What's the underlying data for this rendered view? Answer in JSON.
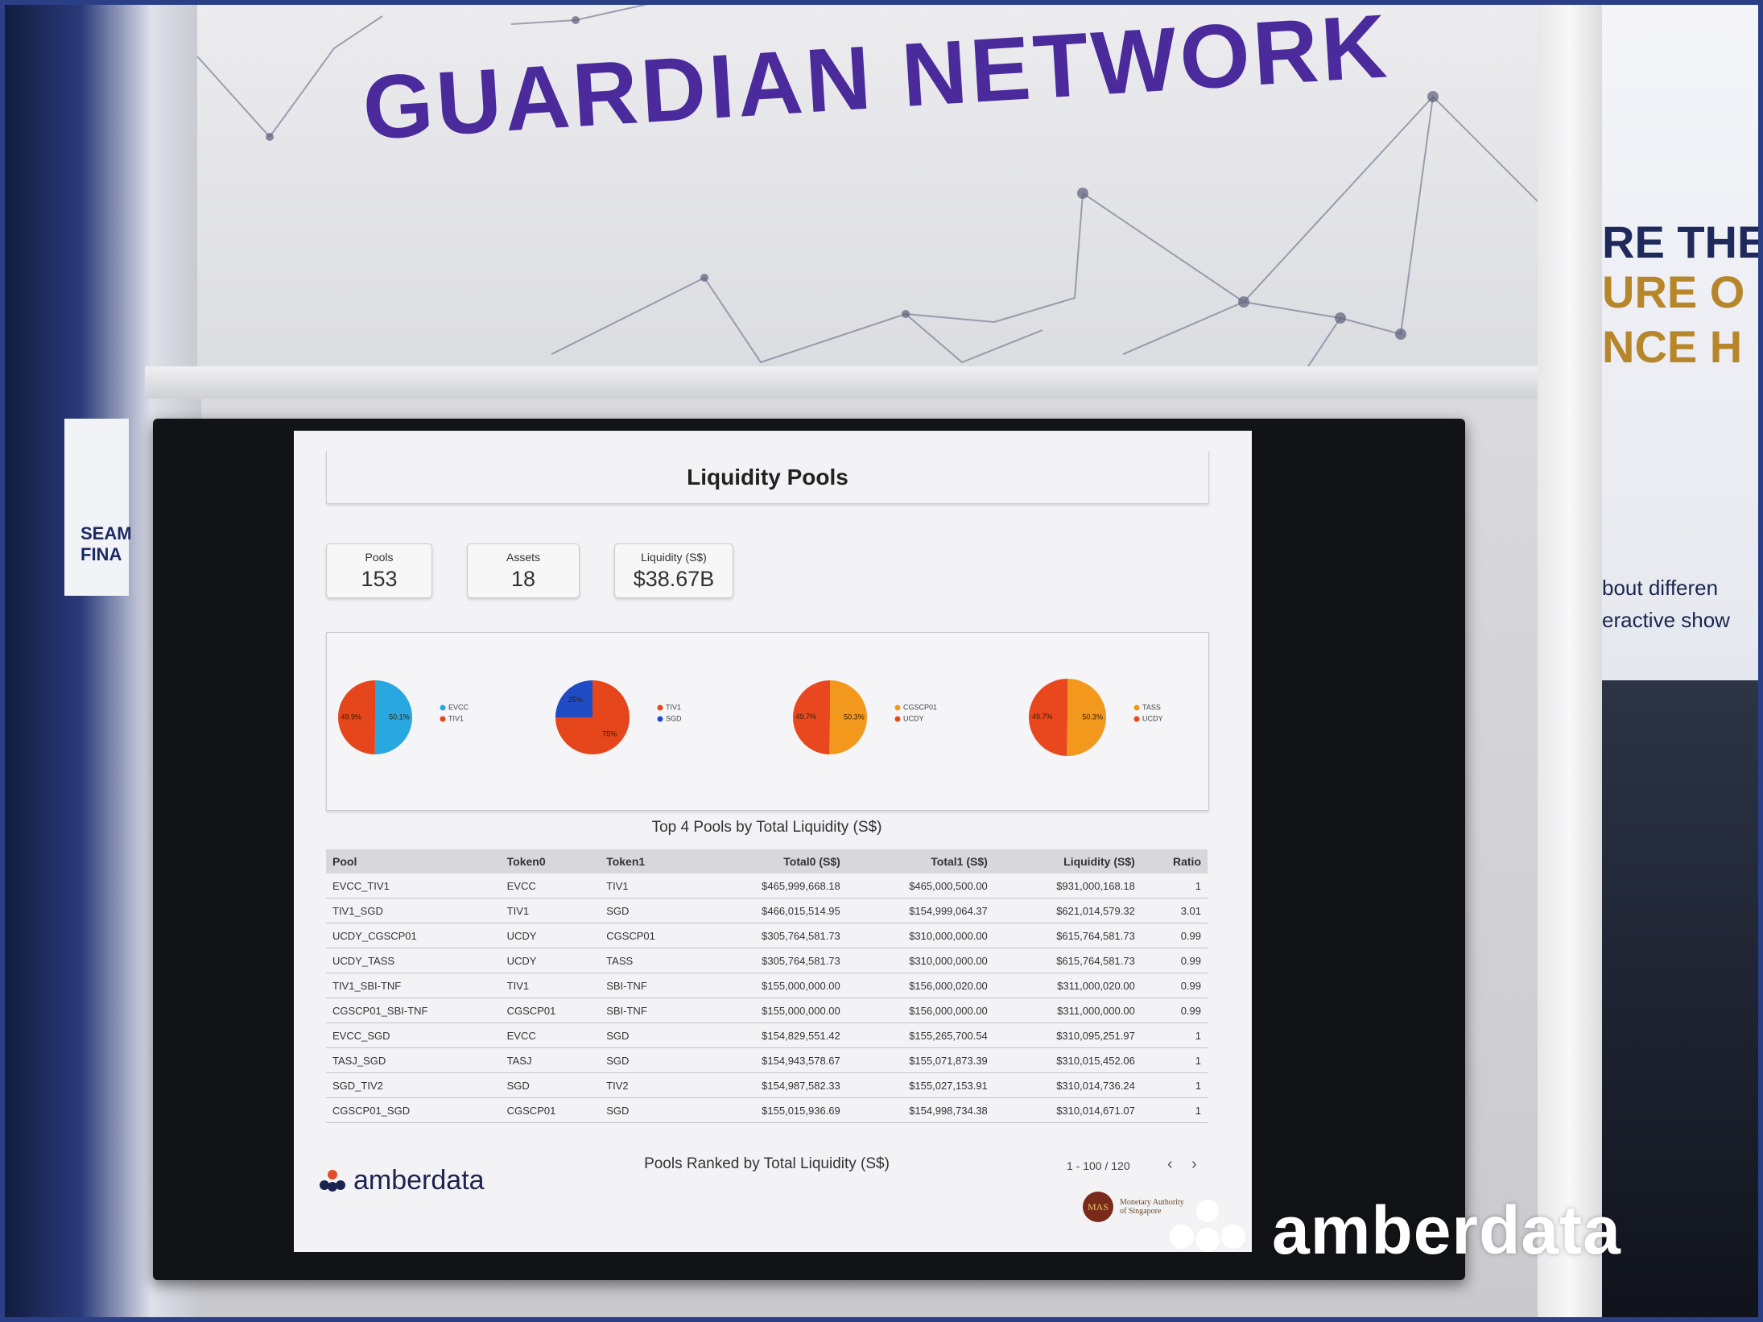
{
  "booth": {
    "banner_title": "GUARDIAN NETWORK",
    "left_text": [
      "SEAM",
      "FINA"
    ],
    "side_text": [
      "RE THE",
      "URE O",
      "NCE H"
    ],
    "side_subtext": [
      "bout differen",
      "eractive show"
    ],
    "watermark": "amberdata"
  },
  "dashboard": {
    "title": "Liquidity Pools",
    "kpis": [
      {
        "label": "Pools",
        "value": "153"
      },
      {
        "label": "Assets",
        "value": "18"
      },
      {
        "label": "Liquidity (S$)",
        "value": "$38.67B"
      }
    ],
    "charts_caption": "Top 4 Pools by Total Liquidity (S$)",
    "table": {
      "headers": [
        "Pool",
        "Token0",
        "Token1",
        "Total0 (S$)",
        "Total1 (S$)",
        "Liquidity (S$)",
        "Ratio"
      ],
      "rows": [
        [
          "EVCC_TIV1",
          "EVCC",
          "TIV1",
          "$465,999,668.18",
          "$465,000,500.00",
          "$931,000,168.18",
          "1"
        ],
        [
          "TIV1_SGD",
          "TIV1",
          "SGD",
          "$466,015,514.95",
          "$154,999,064.37",
          "$621,014,579.32",
          "3.01"
        ],
        [
          "UCDY_CGSCP01",
          "UCDY",
          "CGSCP01",
          "$305,764,581.73",
          "$310,000,000.00",
          "$615,764,581.73",
          "0.99"
        ],
        [
          "UCDY_TASS",
          "UCDY",
          "TASS",
          "$305,764,581.73",
          "$310,000,000.00",
          "$615,764,581.73",
          "0.99"
        ],
        [
          "TIV1_SBI-TNF",
          "TIV1",
          "SBI-TNF",
          "$155,000,000.00",
          "$156,000,020.00",
          "$311,000,020.00",
          "0.99"
        ],
        [
          "CGSCP01_SBI-TNF",
          "CGSCP01",
          "SBI-TNF",
          "$155,000,000.00",
          "$156,000,000.00",
          "$311,000,000.00",
          "0.99"
        ],
        [
          "EVCC_SGD",
          "EVCC",
          "SGD",
          "$154,829,551.42",
          "$155,265,700.54",
          "$310,095,251.97",
          "1"
        ],
        [
          "TASJ_SGD",
          "TASJ",
          "SGD",
          "$154,943,578.67",
          "$155,071,873.39",
          "$310,015,452.06",
          "1"
        ],
        [
          "SGD_TIV2",
          "SGD",
          "TIV2",
          "$154,987,582.33",
          "$155,027,153.91",
          "$310,014,736.24",
          "1"
        ],
        [
          "CGSCP01_SGD",
          "CGSCP01",
          "SGD",
          "$155,015,936.69",
          "$154,998,734.38",
          "$310,014,671.07",
          "1"
        ]
      ],
      "caption": "Pools Ranked by Total Liquidity (S$)",
      "pagination": "1 - 100 / 120"
    },
    "brand": "amberdata",
    "partner_badge": "MAS",
    "partner_name": "Monetary Authority of Singapore"
  },
  "chart_data": [
    {
      "type": "pie",
      "categories": [
        "EVCC",
        "TIV1"
      ],
      "values": [
        50.1,
        49.9
      ],
      "value_labels": [
        "50.1%",
        "49.9%"
      ],
      "colors": [
        "#29a7e1",
        "#e5461b"
      ]
    },
    {
      "type": "pie",
      "categories": [
        "TIV1",
        "SGD"
      ],
      "values": [
        75,
        25
      ],
      "value_labels": [
        "75%",
        "25%"
      ],
      "colors": [
        "#e5461b",
        "#1f4cc4"
      ]
    },
    {
      "type": "pie",
      "categories": [
        "CGSCP01",
        "UCDY"
      ],
      "values": [
        50.3,
        49.7
      ],
      "value_labels": [
        "50.3%",
        "49.7%"
      ],
      "colors": [
        "#f2991d",
        "#e9481f"
      ]
    },
    {
      "type": "pie",
      "categories": [
        "TASS",
        "UCDY"
      ],
      "values": [
        50.3,
        49.7
      ],
      "value_labels": [
        "50.3%",
        "49.7%"
      ],
      "colors": [
        "#f2991d",
        "#e9481f"
      ]
    }
  ]
}
